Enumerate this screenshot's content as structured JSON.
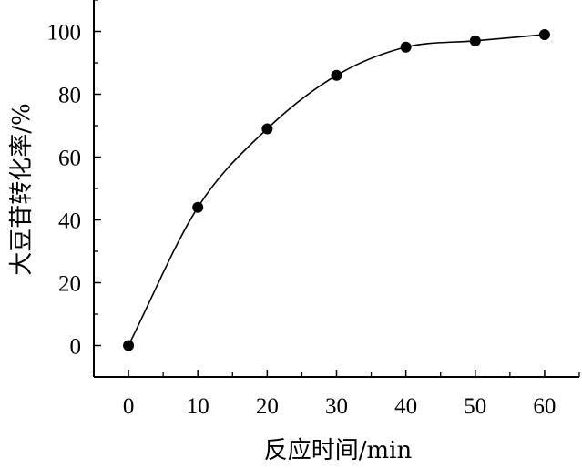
{
  "chart_data": {
    "type": "scatter",
    "xlabel": "反应时间/min",
    "ylabel": "大豆苷转化率/%",
    "xlim": [
      -5,
      65
    ],
    "ylim": [
      -10,
      110
    ],
    "x_ticks": [
      0,
      10,
      20,
      30,
      40,
      50,
      60
    ],
    "y_ticks": [
      0,
      20,
      40,
      60,
      80,
      100
    ],
    "x_tick_labels": [
      "0",
      "10",
      "20",
      "30",
      "40",
      "50",
      "60"
    ],
    "y_tick_labels": [
      "0",
      "20",
      "40",
      "60",
      "80",
      "100"
    ],
    "grid": false,
    "series": [
      {
        "x": [
          0,
          10,
          20,
          30,
          40,
          50,
          60
        ],
        "y": [
          0,
          44,
          69,
          86,
          95,
          97,
          99
        ],
        "marker": "filled-circle",
        "color": "#000000",
        "fit_line": "smooth"
      }
    ]
  }
}
